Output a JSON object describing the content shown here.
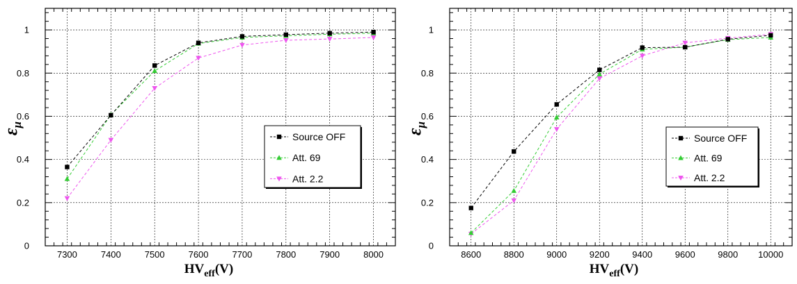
{
  "chart_data": [
    {
      "type": "line",
      "title": "",
      "xlabel": "HV",
      "xlabel_sub": "eff",
      "xlabel_unit": "(V)",
      "ylabel": "ε",
      "ylabel_sub": "μ",
      "xlim": [
        7250,
        8050
      ],
      "ylim": [
        0,
        1.1
      ],
      "xticks": [
        7300,
        7400,
        7500,
        7600,
        7700,
        7800,
        7900,
        8000
      ],
      "yticks": [
        0,
        0.2,
        0.4,
        0.6,
        0.8,
        1
      ],
      "ytick_labels": [
        "0",
        "0.2",
        "0.4",
        "0.6",
        "0.8",
        "1"
      ],
      "grid": true,
      "legend_position": "right",
      "x": [
        7300,
        7400,
        7500,
        7600,
        7700,
        7800,
        7900,
        8000
      ],
      "series": [
        {
          "name": "Source OFF",
          "color": "#000000",
          "marker": "square",
          "values": [
            0.365,
            0.605,
            0.835,
            0.94,
            0.97,
            0.978,
            0.985,
            0.99
          ]
        },
        {
          "name": "Att. 69",
          "color": "#33cc33",
          "marker": "triangle-up",
          "values": [
            0.31,
            0.607,
            0.81,
            0.937,
            0.965,
            0.973,
            0.98,
            0.985
          ]
        },
        {
          "name": "Att. 2.2",
          "color": "#ee55ee",
          "marker": "triangle-down",
          "values": [
            0.22,
            0.49,
            0.73,
            0.87,
            0.93,
            0.952,
            0.958,
            0.965
          ]
        }
      ]
    },
    {
      "type": "line",
      "title": "",
      "xlabel": "HV",
      "xlabel_sub": "eff",
      "xlabel_unit": "(V)",
      "ylabel": "ε",
      "ylabel_sub": "μ",
      "xlim": [
        8500,
        10100
      ],
      "ylim": [
        0,
        1.1
      ],
      "xticks": [
        8600,
        8800,
        9000,
        9200,
        9400,
        9600,
        9800,
        10000
      ],
      "yticks": [
        0,
        0.2,
        0.4,
        0.6,
        0.8,
        1
      ],
      "ytick_labels": [
        "0",
        "0.2",
        "0.4",
        "0.6",
        "0.8",
        "1"
      ],
      "grid": true,
      "legend_position": "right",
      "x": [
        8600,
        8800,
        9000,
        9200,
        9400,
        9600,
        9800,
        10000
      ],
      "series": [
        {
          "name": "Source OFF",
          "color": "#000000",
          "marker": "square",
          "values": [
            0.175,
            0.437,
            0.655,
            0.815,
            0.918,
            0.92,
            0.957,
            0.975
          ]
        },
        {
          "name": "Att. 69",
          "color": "#33cc33",
          "marker": "triangle-up",
          "values": [
            0.06,
            0.255,
            0.595,
            0.795,
            0.91,
            0.92,
            0.955,
            0.965
          ]
        },
        {
          "name": "Att. 2.2",
          "color": "#ee55ee",
          "marker": "triangle-down",
          "values": [
            0.055,
            0.21,
            0.54,
            0.775,
            0.88,
            0.94,
            0.962,
            0.98
          ]
        }
      ]
    }
  ]
}
